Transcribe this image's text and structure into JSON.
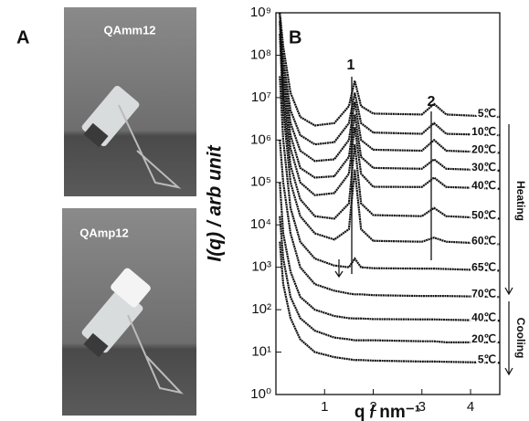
{
  "panel_a": {
    "label": "A",
    "photos": [
      {
        "caption": "QAmm12"
      },
      {
        "caption": "QAmp12"
      }
    ]
  },
  "chart_data": {
    "type": "line",
    "panel_label": "B",
    "ylabel": "I(q) / arb unit",
    "xlabel": "q / nm⁻¹",
    "log_y": true,
    "color": "#111111",
    "xlim": [
      0,
      4.6
    ],
    "xticks": [
      1,
      2,
      3,
      4
    ],
    "ylim": [
      1,
      1000000000
    ],
    "yticks": [
      {
        "value": 1,
        "label": "10⁰"
      },
      {
        "value": 10,
        "label": "10¹"
      },
      {
        "value": 100,
        "label": "10²"
      },
      {
        "value": 1000,
        "label": "10³"
      },
      {
        "value": 10000,
        "label": "10⁴"
      },
      {
        "value": 100000,
        "label": "10⁵"
      },
      {
        "value": 1000000,
        "label": "10⁶"
      },
      {
        "value": 10000000,
        "label": "10⁷"
      },
      {
        "value": 100000000,
        "label": "10⁸"
      },
      {
        "value": 1000000000,
        "label": "10⁹"
      }
    ],
    "peak_labels": [
      "1",
      "2"
    ],
    "heating_label": "Heating",
    "cooling_label": "Cooling",
    "x": [
      0.08,
      0.15,
      0.3,
      0.5,
      0.8,
      1.2,
      1.5,
      1.62,
      1.75,
      2.0,
      3.0,
      3.25,
      3.5,
      4.6
    ],
    "series": [
      {
        "name": "5℃",
        "values": [
          1000000000.0,
          160000000.0,
          13000000.0,
          3500000.0,
          2200000.0,
          2500000.0,
          6300000.0,
          25000000.0,
          6300000.0,
          4200000.0,
          4000000.0,
          7100000.0,
          4000000.0,
          3500000.0
        ]
      },
      {
        "name": "10℃",
        "values": [
          1000000000.0,
          79000000.0,
          5000000.0,
          1300000.0,
          790000.0,
          890000.0,
          2500000.0,
          13000000.0,
          2500000.0,
          1500000.0,
          1400000.0,
          2500000.0,
          1400000.0,
          1300000.0
        ]
      },
      {
        "name": "20℃",
        "values": [
          1000000000.0,
          50000000.0,
          2500000.0,
          560000.0,
          320000.0,
          350000.0,
          1000000.0,
          7900000.0,
          1000000.0,
          590000.0,
          560000.0,
          1000000.0,
          560000.0,
          500000.0
        ]
      },
      {
        "name": "30℃",
        "values": [
          1000000000.0,
          32000000.0,
          1300000.0,
          220000.0,
          130000.0,
          140000.0,
          400000.0,
          4000000.0,
          400000.0,
          220000.0,
          210000.0,
          350000.0,
          210000.0,
          190000.0
        ]
      },
      {
        "name": "40℃",
        "values": [
          1000000000.0,
          20000000.0,
          630000.0,
          100000.0,
          50000.0,
          56000.0,
          160000.0,
          2000000.0,
          160000.0,
          79000.0,
          78000.0,
          130000.0,
          78000.0,
          71000.0
        ]
      },
      {
        "name": "50℃",
        "values": [
          630000000.0,
          10000000.0,
          250000.0,
          40000.0,
          16000.0,
          14000.0,
          32000.0,
          790000.0,
          32000.0,
          17000.0,
          16000.0,
          25000.0,
          16000.0,
          14000.0
        ]
      },
      {
        "name": "60℃",
        "values": [
          320000000.0,
          5000000.0,
          100000.0,
          16000.0,
          6300.0,
          4500.0,
          7900.0,
          200000.0,
          7900.0,
          4200.0,
          4000.0,
          5000.0,
          4000.0,
          3500.0
        ]
      },
      {
        "name": "65℃",
        "values": [
          32000000.0,
          1000000.0,
          25000.0,
          4000.0,
          1600.0,
          1100.0,
          1000.0,
          1600.0,
          1000.0,
          950,
          930,
          930,
          910,
          830
        ]
      },
      {
        "name": "70℃",
        "values": [
          1000000.0,
          100000.0,
          6300.0,
          1000.0,
          400,
          280,
          240,
          230,
          230,
          220,
          210,
          210,
          210,
          200
        ]
      },
      {
        "name": "40℃",
        "values": [
          100000.0,
          6300.0,
          790,
          200,
          100,
          71,
          63,
          62,
          62,
          60,
          59,
          59,
          58,
          55
        ]
      },
      {
        "name": "20℃",
        "values": [
          16000.0,
          1600.0,
          200,
          63,
          32,
          22,
          20,
          19,
          19,
          19,
          18,
          18,
          17,
          17
        ]
      },
      {
        "name": "5℃",
        "values": [
          4000.0,
          400,
          63,
          20,
          10,
          7.6,
          6.8,
          6.5,
          6.5,
          6.3,
          6,
          6,
          5.9,
          5.6
        ]
      }
    ]
  }
}
